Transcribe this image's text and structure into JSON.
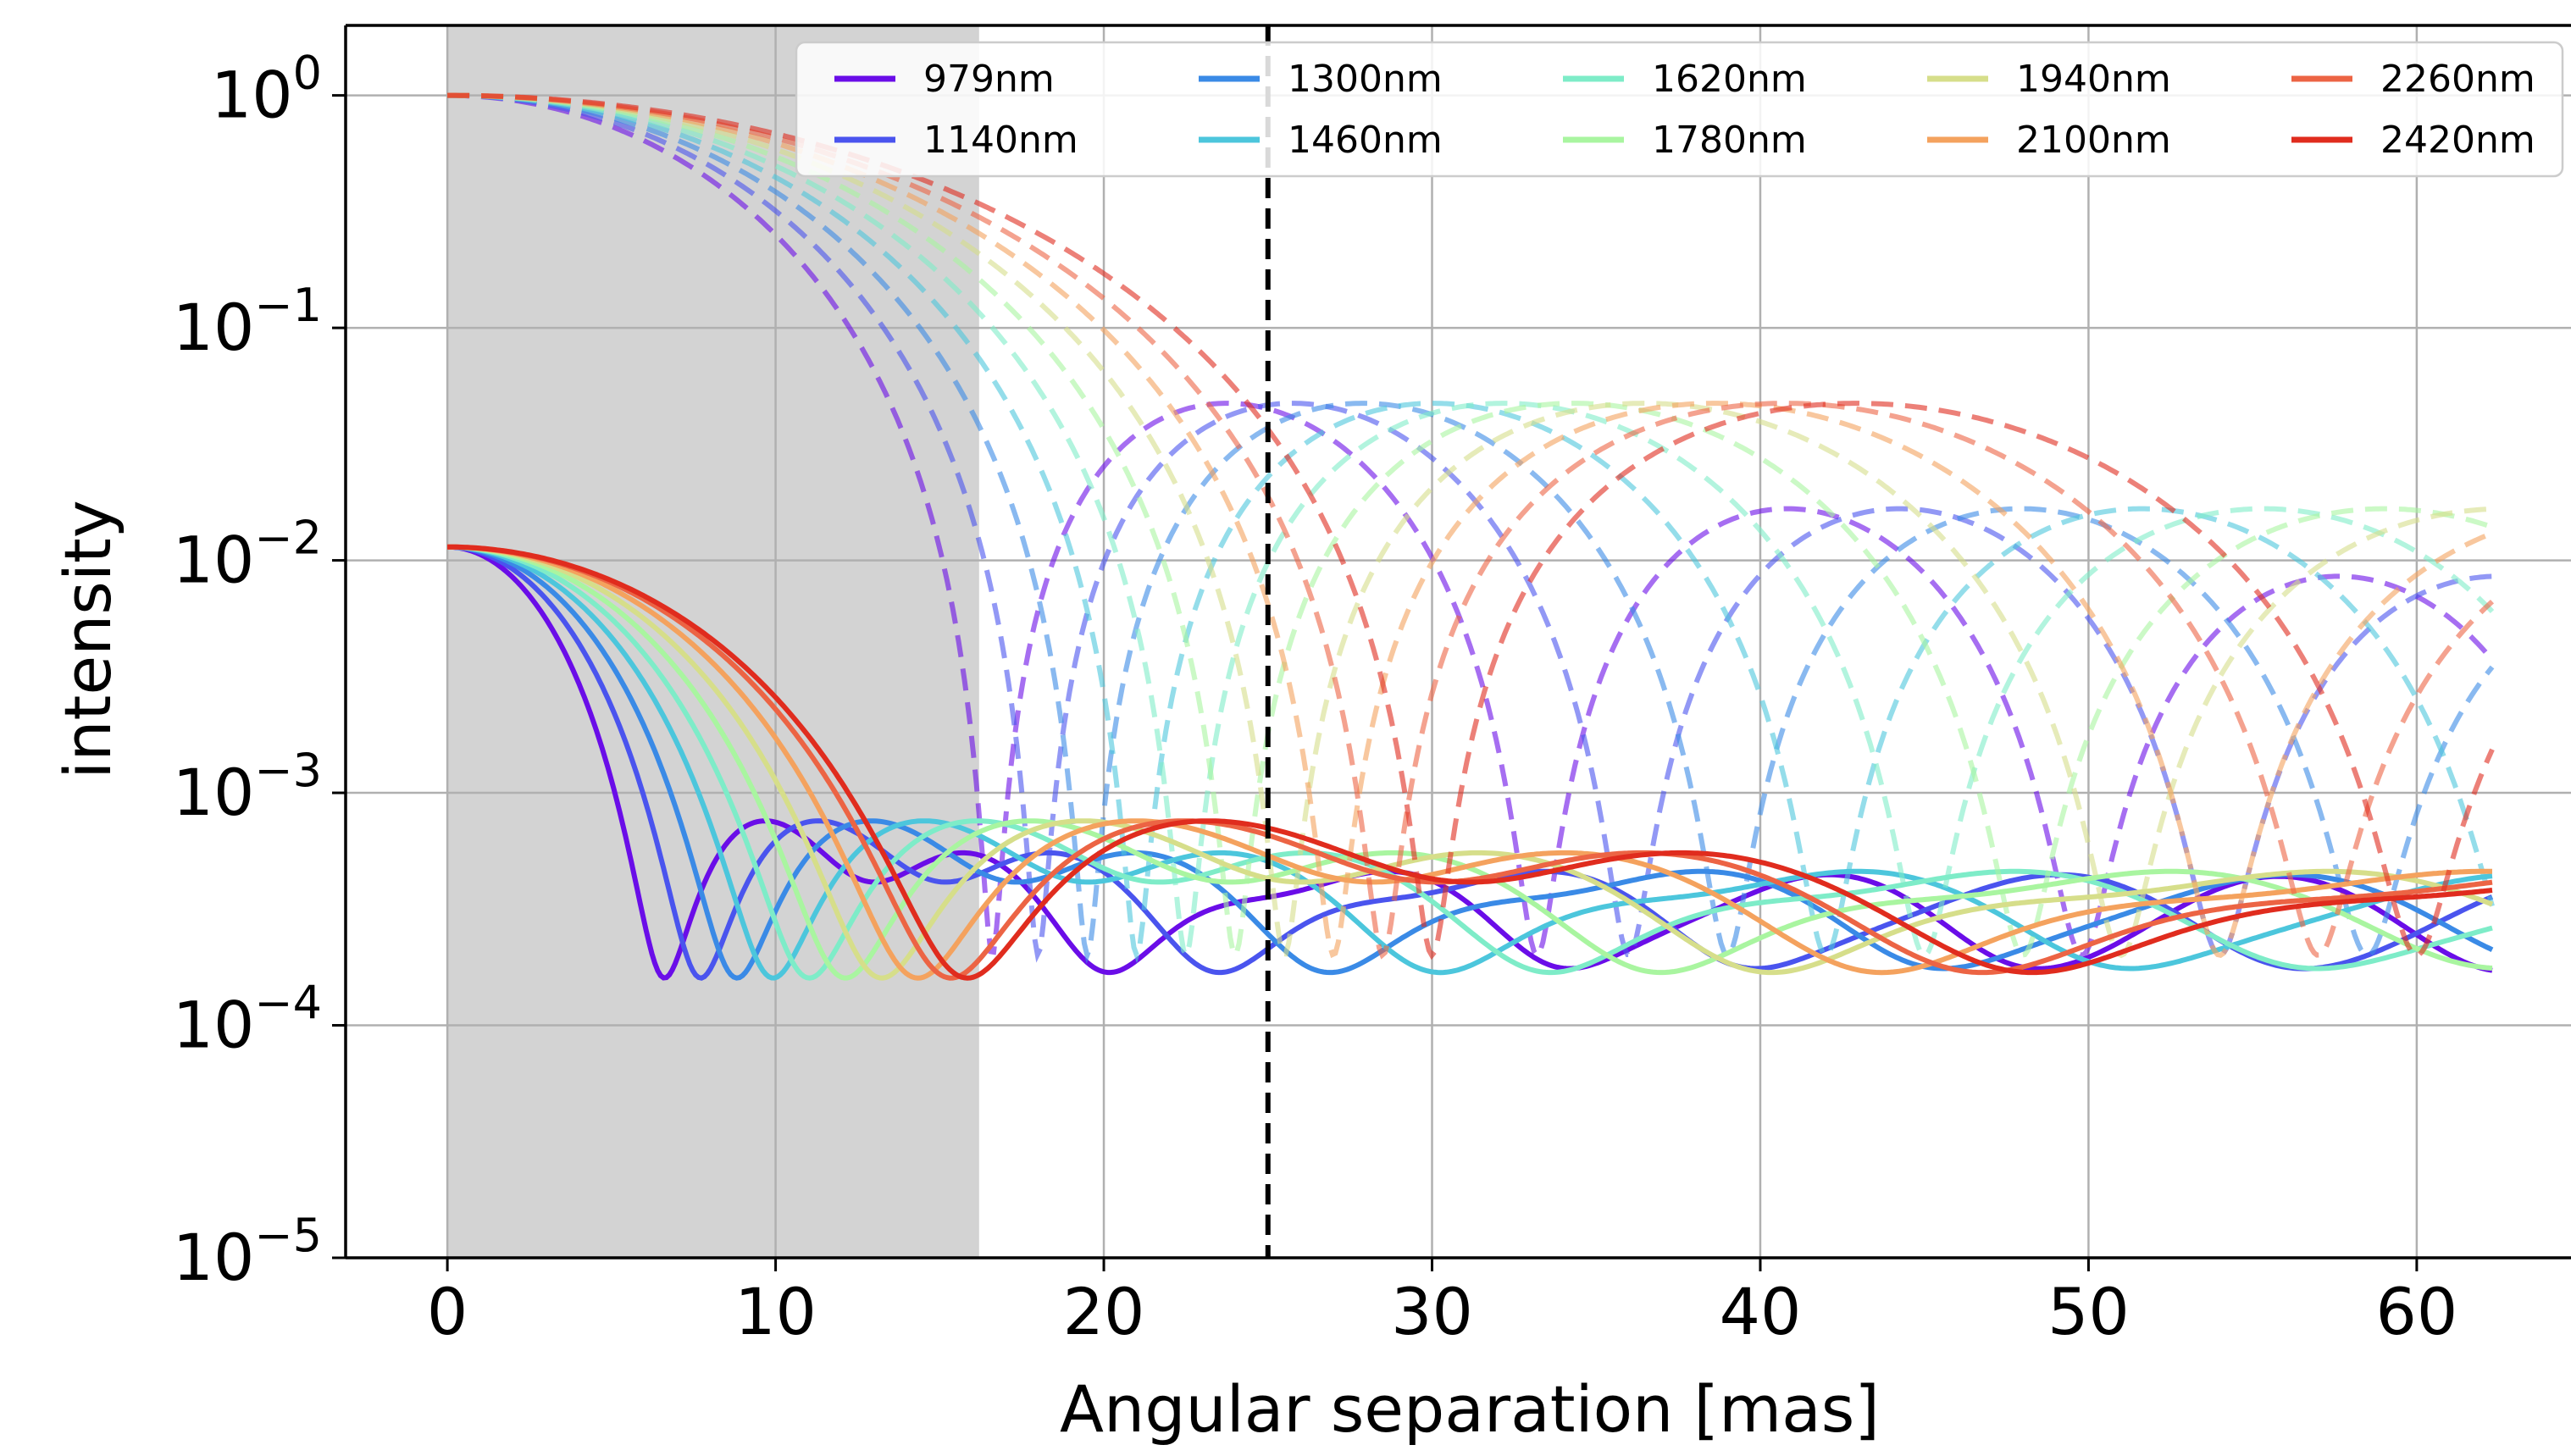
{
  "chart_data": {
    "type": "line",
    "xlabel": "Angular separation [mas]",
    "ylabel": "intensity",
    "xlim": [
      -3.1,
      64.7
    ],
    "ylim": [
      1e-05,
      2.0
    ],
    "yscale": "log",
    "grid": true,
    "x_ticks": [
      {
        "value": 0,
        "label": "0"
      },
      {
        "value": 10,
        "label": "10"
      },
      {
        "value": 20,
        "label": "20"
      },
      {
        "value": 30,
        "label": "30"
      },
      {
        "value": 40,
        "label": "40"
      },
      {
        "value": 50,
        "label": "50"
      },
      {
        "value": 60,
        "label": "60"
      }
    ],
    "y_ticks": [
      {
        "value": 1,
        "base": "10",
        "exp": "0"
      },
      {
        "value": 0.1,
        "base": "10",
        "exp": "−1"
      },
      {
        "value": 0.01,
        "base": "10",
        "exp": "−2"
      },
      {
        "value": 0.001,
        "base": "10",
        "exp": "−3"
      },
      {
        "value": 0.0001,
        "base": "10",
        "exp": "−4"
      },
      {
        "value": 1e-05,
        "base": "10",
        "exp": "−5"
      }
    ],
    "shaded_region": {
      "x0": 0,
      "x1": 16.2,
      "color": "#d3d3d3"
    },
    "vertical_line": {
      "x": 25,
      "style": "dashed",
      "color": "#000000"
    },
    "legend_position": "top-right",
    "x_max": 62.3,
    "series": [
      {
        "name": "979nm",
        "color": "#6a0de8",
        "first_null": 6.6,
        "dashed_first_null": 16.6
      },
      {
        "name": "1140nm",
        "color": "#4a54ee",
        "first_null": 7.7,
        "dashed_first_null": 18.0
      },
      {
        "name": "1300nm",
        "color": "#3a8ae6",
        "first_null": 8.8,
        "dashed_first_null": 19.5
      },
      {
        "name": "1460nm",
        "color": "#4cc6dc",
        "first_null": 9.9,
        "dashed_first_null": 21.0
      },
      {
        "name": "1620nm",
        "color": "#7eecc8",
        "first_null": 11.0,
        "dashed_first_null": 22.5
      },
      {
        "name": "1780nm",
        "color": "#a9f5a0",
        "first_null": 12.1,
        "dashed_first_null": 24.0
      },
      {
        "name": "1940nm",
        "color": "#d6de8a",
        "first_null": 13.2,
        "dashed_first_null": 25.5
      },
      {
        "name": "2100nm",
        "color": "#f4a25e",
        "first_null": 14.3,
        "dashed_first_null": 27.0
      },
      {
        "name": "2260nm",
        "color": "#ec6444",
        "first_null": 15.3,
        "dashed_first_null": 28.5
      },
      {
        "name": "2420nm",
        "color": "#e02c1e",
        "first_null": 15.8,
        "dashed_first_null": 30.0
      }
    ]
  }
}
